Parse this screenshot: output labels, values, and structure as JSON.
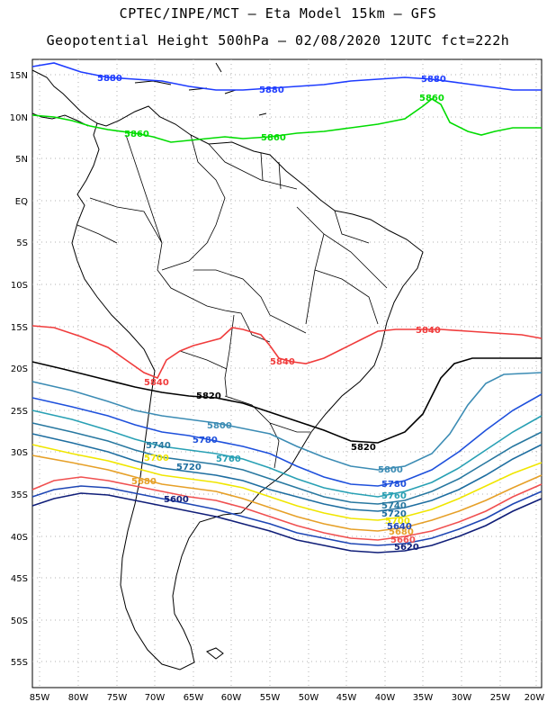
{
  "title_line1": "CPTEC/INPE/MCT –  Eta Model 15km – GFS",
  "title_line2": "Geopotential Height 500hPa – 02/08/2020 12UTC fct=222h",
  "lat_labels": [
    "15N",
    "10N",
    "5N",
    "EQ",
    "5S",
    "10S",
    "15S",
    "20S",
    "25S",
    "30S",
    "35S",
    "40S",
    "45S",
    "50S",
    "55S"
  ],
  "lon_labels": [
    "85W",
    "80W",
    "75W",
    "70W",
    "65W",
    "60W",
    "55W",
    "50W",
    "45W",
    "40W",
    "35W",
    "30W",
    "25W",
    "20W"
  ],
  "contour_labels": {
    "c5880": "5880",
    "c5860": "5860",
    "c5840": "5840",
    "c5820": "5820",
    "c5800": "5800",
    "c5780": "5780",
    "c5760": "5760",
    "c5740": "5740",
    "c5720": "5720",
    "c5700": "5700",
    "c5680": "5680",
    "c5660": "5660",
    "c5640": "5640",
    "c5620": "5620",
    "c5600": "5600"
  },
  "colors": {
    "c5880": "#1e3cff",
    "c5860": "#00dc00",
    "c5840": "#f03c3c",
    "c5820": "#000000",
    "c5800": "#3c8cb4",
    "c5780": "#1e50dc",
    "c5760": "#28a0b4",
    "c5740": "#2878a0",
    "c5720": "#1e6ea0",
    "c5700": "#f0e600",
    "c5680": "#e6a028",
    "c5660": "#f05050",
    "c5640": "#1e46b4",
    "c5600": "#101e78"
  }
}
